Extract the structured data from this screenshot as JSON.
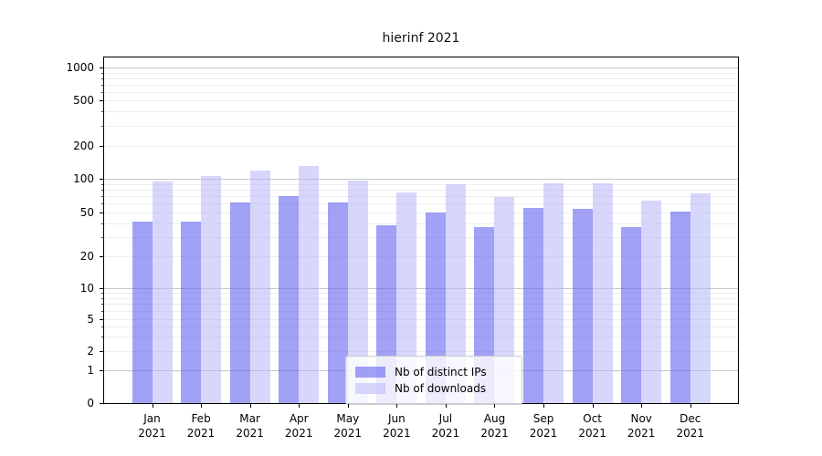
{
  "chart_data": {
    "type": "bar",
    "title": "hierinf 2021",
    "categories": [
      "Jan",
      "Feb",
      "Mar",
      "Apr",
      "May",
      "Jun",
      "Jul",
      "Aug",
      "Sep",
      "Oct",
      "Nov",
      "Dec"
    ],
    "category_year": "2021",
    "series": [
      {
        "name": "Nb of distinct IPs",
        "color": "rgba(98,98,240,0.60)",
        "values": [
          41,
          41,
          62,
          70,
          62,
          38,
          50,
          37,
          55,
          54,
          37,
          51
        ]
      },
      {
        "name": "Nb of downloads",
        "color": "rgba(185,185,250,0.57)",
        "values": [
          95,
          107,
          119,
          130,
          97,
          76,
          89,
          69,
          91,
          91,
          64,
          74
        ]
      }
    ],
    "xlabel": "",
    "ylabel": "",
    "scale": "symlog",
    "y_ticks": [
      0,
      1,
      2,
      5,
      10,
      20,
      50,
      100,
      200,
      500,
      1000
    ],
    "minor_ticks": [
      2,
      3,
      4,
      5,
      6,
      7,
      8,
      9,
      20,
      30,
      40,
      50,
      60,
      70,
      80,
      90,
      200,
      300,
      400,
      500,
      600,
      700,
      800,
      900
    ],
    "ylim": [
      0,
      1400
    ],
    "grid": true,
    "legend_position": "lower-center"
  }
}
